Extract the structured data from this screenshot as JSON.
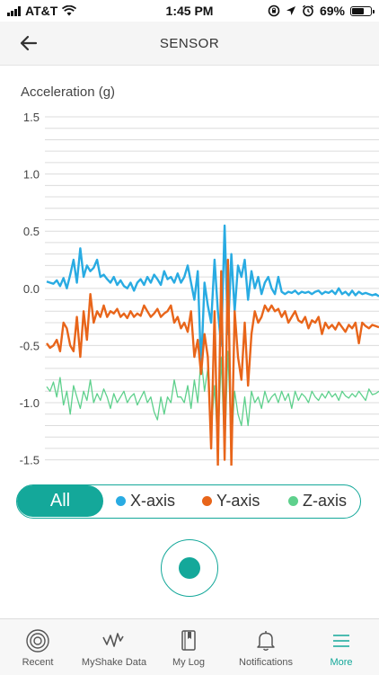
{
  "status_bar": {
    "carrier": "AT&T",
    "time": "1:45 PM",
    "battery": "69%",
    "battery_level": 0.69
  },
  "header": {
    "title": "SENSOR"
  },
  "chart_data": {
    "type": "line",
    "title": "Acceleration (g)",
    "ylabel": "Acceleration (g)",
    "xlabel": "",
    "ylim": [
      -1.55,
      1.5
    ],
    "yticks": [
      1.5,
      1.0,
      0.5,
      0.0,
      -0.5,
      -1.0,
      -1.5
    ],
    "ytick_labels": [
      "1.5",
      "1.0",
      "0.5",
      "0.0",
      "-0.5",
      "-1.0",
      "-1.5"
    ],
    "grid": true,
    "legend": "bottom",
    "x": [
      0,
      1,
      2,
      3,
      4,
      5,
      6,
      7,
      8,
      9,
      10,
      11,
      12,
      13,
      14,
      15,
      16,
      17,
      18,
      19,
      20,
      21,
      22,
      23,
      24,
      25,
      26,
      27,
      28,
      29,
      30,
      31,
      32,
      33,
      34,
      35,
      36,
      37,
      38,
      39,
      40,
      41,
      42,
      43,
      44,
      45,
      46,
      47,
      48,
      49,
      50,
      51,
      52,
      53,
      54,
      55,
      56,
      57,
      58,
      59,
      60,
      61,
      62,
      63,
      64,
      65,
      66,
      67,
      68,
      69,
      70,
      71,
      72,
      73,
      74,
      75,
      76,
      77,
      78,
      79,
      80,
      81,
      82,
      83,
      84,
      85,
      86,
      87,
      88,
      89,
      90,
      91,
      92,
      93,
      94,
      95,
      96,
      97,
      98,
      99
    ],
    "series": [
      {
        "name": "X-axis",
        "color": "#29ABE2",
        "values": [
          0.06,
          0.05,
          0.04,
          0.07,
          0.02,
          0.09,
          0.0,
          0.12,
          0.25,
          0.05,
          0.35,
          0.1,
          0.2,
          0.15,
          0.18,
          0.25,
          0.1,
          0.12,
          0.08,
          0.05,
          0.1,
          0.03,
          0.07,
          0.02,
          0.0,
          0.05,
          -0.02,
          0.05,
          0.08,
          0.03,
          0.1,
          0.05,
          0.12,
          0.08,
          0.03,
          0.15,
          0.08,
          0.1,
          0.05,
          0.13,
          0.05,
          0.1,
          0.2,
          0.05,
          -0.1,
          0.15,
          -0.7,
          0.05,
          -0.15,
          -0.3,
          0.25,
          -0.2,
          -0.5,
          0.55,
          -0.4,
          0.3,
          -0.2,
          0.2,
          0.1,
          0.25,
          -0.1,
          0.15,
          0.0,
          0.1,
          -0.05,
          0.05,
          0.1,
          0.0,
          -0.05,
          0.1,
          -0.03,
          -0.05,
          -0.03,
          -0.04,
          -0.02,
          -0.05,
          -0.03,
          -0.04,
          -0.03,
          -0.05,
          -0.03,
          -0.02,
          -0.05,
          -0.03,
          -0.04,
          -0.02,
          -0.05,
          0.0,
          -0.05,
          -0.03,
          -0.06,
          -0.02,
          -0.06,
          -0.03,
          -0.05,
          -0.04,
          -0.05,
          -0.06,
          -0.05,
          -0.07
        ]
      },
      {
        "name": "Y-axis",
        "color": "#E8651A",
        "values": [
          -0.48,
          -0.52,
          -0.5,
          -0.45,
          -0.55,
          -0.3,
          -0.35,
          -0.5,
          -0.55,
          -0.25,
          -0.6,
          -0.2,
          -0.45,
          -0.05,
          -0.3,
          -0.2,
          -0.25,
          -0.15,
          -0.25,
          -0.2,
          -0.22,
          -0.18,
          -0.25,
          -0.22,
          -0.26,
          -0.2,
          -0.25,
          -0.22,
          -0.24,
          -0.15,
          -0.2,
          -0.25,
          -0.22,
          -0.18,
          -0.25,
          -0.22,
          -0.2,
          -0.15,
          -0.3,
          -0.25,
          -0.35,
          -0.3,
          -0.38,
          -0.2,
          -0.6,
          -0.45,
          -0.75,
          -0.4,
          -0.6,
          -1.4,
          -0.2,
          -1.55,
          0.15,
          -1.5,
          0.25,
          -1.55,
          -0.2,
          -0.6,
          -0.8,
          -0.3,
          -0.85,
          -0.4,
          -0.2,
          -0.3,
          -0.25,
          -0.15,
          -0.2,
          -0.15,
          -0.2,
          -0.18,
          -0.25,
          -0.2,
          -0.3,
          -0.25,
          -0.2,
          -0.28,
          -0.3,
          -0.25,
          -0.35,
          -0.28,
          -0.3,
          -0.25,
          -0.4,
          -0.3,
          -0.35,
          -0.32,
          -0.36,
          -0.3,
          -0.34,
          -0.38,
          -0.32,
          -0.35,
          -0.3,
          -0.48,
          -0.3,
          -0.33,
          -0.35,
          -0.32,
          -0.33,
          -0.34
        ]
      },
      {
        "name": "Z-axis",
        "color": "#5ED08C",
        "values": [
          -0.86,
          -0.9,
          -0.82,
          -0.95,
          -0.78,
          -1.02,
          -0.9,
          -1.1,
          -0.85,
          -0.95,
          -1.05,
          -0.9,
          -0.98,
          -0.8,
          -1.0,
          -0.92,
          -0.98,
          -0.88,
          -0.95,
          -1.05,
          -0.92,
          -1.0,
          -0.95,
          -0.9,
          -1.0,
          -0.95,
          -0.92,
          -1.02,
          -0.96,
          -0.9,
          -1.0,
          -0.95,
          -1.08,
          -1.15,
          -0.95,
          -1.1,
          -0.95,
          -1.0,
          -0.8,
          -0.95,
          -0.95,
          -1.0,
          -0.85,
          -1.05,
          -0.8,
          -1.0,
          -0.6,
          -0.9,
          -0.7,
          -1.25,
          -0.85,
          -1.4,
          -0.6,
          -1.45,
          -0.55,
          -1.35,
          -0.9,
          -1.1,
          -1.2,
          -0.95,
          -1.2,
          -0.9,
          -1.0,
          -0.95,
          -1.05,
          -0.9,
          -1.0,
          -0.95,
          -0.92,
          -1.0,
          -0.9,
          -0.98,
          -0.92,
          -1.05,
          -0.9,
          -0.98,
          -0.92,
          -0.95,
          -1.0,
          -0.9,
          -0.95,
          -0.98,
          -0.92,
          -0.96,
          -0.9,
          -0.95,
          -0.92,
          -0.98,
          -0.9,
          -0.94,
          -0.96,
          -0.92,
          -0.95,
          -0.9,
          -0.94,
          -0.98,
          -0.88,
          -0.93,
          -0.92,
          -0.9
        ]
      }
    ]
  },
  "filter": {
    "all_label": "All",
    "items": [
      {
        "label": "X-axis",
        "color": "#29ABE2"
      },
      {
        "label": "Y-axis",
        "color": "#E8651A"
      },
      {
        "label": "Z-axis",
        "color": "#5ED08C"
      }
    ]
  },
  "accent_color": "#14A89A",
  "tabbar": {
    "items": [
      {
        "label": "Recent",
        "icon": "target-icon"
      },
      {
        "label": "MyShake Data",
        "icon": "waveform-icon"
      },
      {
        "label": "My Log",
        "icon": "book-icon"
      },
      {
        "label": "Notifications",
        "icon": "bell-icon"
      },
      {
        "label": "More",
        "icon": "menu-icon",
        "active": true
      }
    ]
  }
}
